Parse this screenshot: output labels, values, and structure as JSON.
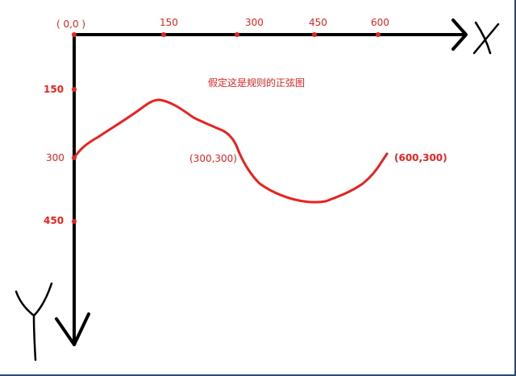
{
  "diagram": {
    "origin_label": "( 0,0 )",
    "x_ticks": [
      "150",
      "300",
      "450",
      "600"
    ],
    "y_ticks": [
      "150",
      "300",
      "450"
    ],
    "x_axis_letter": "X",
    "y_axis_letter": "Y",
    "note": "假定这是规则的正弦图",
    "point_mid_label": "(300,300)",
    "point_end_label": "(600,300)"
  },
  "colors": {
    "axis": "#000000",
    "curve": "#e8231f",
    "text": "#e8231f",
    "frame": "#2b4a78"
  }
}
